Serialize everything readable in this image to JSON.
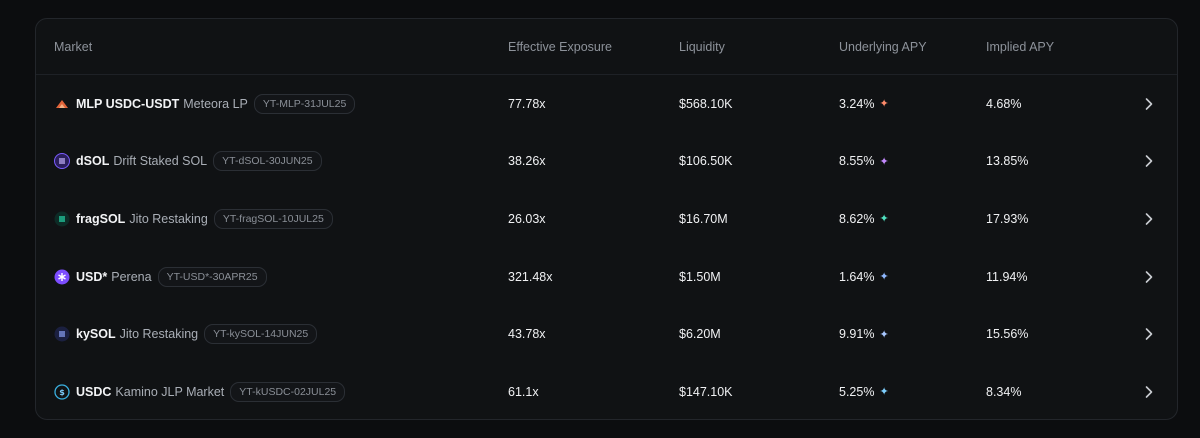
{
  "table": {
    "headers": {
      "market": "Market",
      "exposure": "Effective Exposure",
      "liquidity": "Liquidity",
      "underlying_apy": "Underlying APY",
      "implied_apy": "Implied APY"
    },
    "rows": [
      {
        "symbol": "MLP USDC-USDT",
        "name": "Meteora LP",
        "tag": "YT-MLP-31JUL25",
        "exposure": "77.78x",
        "liquidity": "$568.10K",
        "underlying_apy": "3.24%",
        "implied_apy": "4.68%",
        "icon": "meteora-lp-icon",
        "icon_color": "#e2643a",
        "spark_color": "#ff8c6b"
      },
      {
        "symbol": "dSOL",
        "name": "Drift Staked SOL",
        "tag": "YT-dSOL-30JUN25",
        "exposure": "38.26x",
        "liquidity": "$106.50K",
        "underlying_apy": "8.55%",
        "implied_apy": "13.85%",
        "icon": "dsol-icon",
        "icon_color": "#7b5cff",
        "spark_color": "#c58bff"
      },
      {
        "symbol": "fragSOL",
        "name": "Jito Restaking",
        "tag": "YT-fragSOL-10JUL25",
        "exposure": "26.03x",
        "liquidity": "$16.70M",
        "underlying_apy": "8.62%",
        "implied_apy": "17.93%",
        "icon": "fragsol-icon",
        "icon_color": "#27e0b0",
        "spark_color": "#4fe0c0"
      },
      {
        "symbol": "USD*",
        "name": "Perena",
        "tag": "YT-USD*-30APR25",
        "exposure": "321.48x",
        "liquidity": "$1.50M",
        "underlying_apy": "1.64%",
        "implied_apy": "11.94%",
        "icon": "perena-icon",
        "icon_color": "#7c4dff",
        "spark_color": "#8fb8ff"
      },
      {
        "symbol": "kySOL",
        "name": "Jito Restaking",
        "tag": "YT-kySOL-14JUN25",
        "exposure": "43.78x",
        "liquidity": "$6.20M",
        "underlying_apy": "9.91%",
        "implied_apy": "15.56%",
        "icon": "kysol-icon",
        "icon_color": "#6e8cff",
        "spark_color": "#a8c8ff"
      },
      {
        "symbol": "USDC",
        "name": "Kamino JLP Market",
        "tag": "YT-kUSDC-02JUL25",
        "exposure": "61.1x",
        "liquidity": "$147.10K",
        "underlying_apy": "5.25%",
        "implied_apy": "8.34%",
        "icon": "kamino-usdc-icon",
        "icon_color": "#3ab0e0",
        "spark_color": "#7fd0ff"
      }
    ]
  },
  "colors": {
    "background": "#0c0d0f",
    "card": "#101214",
    "border": "#23262b",
    "header_text": "#8d929a"
  }
}
